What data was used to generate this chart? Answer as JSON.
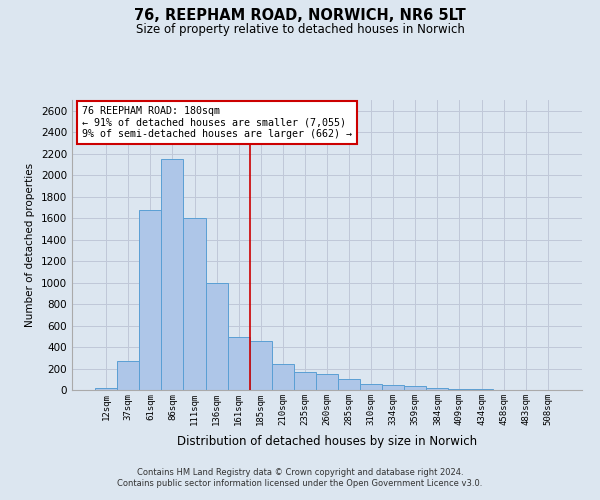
{
  "title_line1": "76, REEPHAM ROAD, NORWICH, NR6 5LT",
  "title_line2": "Size of property relative to detached houses in Norwich",
  "xlabel": "Distribution of detached houses by size in Norwich",
  "ylabel": "Number of detached properties",
  "categories": [
    "12sqm",
    "37sqm",
    "61sqm",
    "86sqm",
    "111sqm",
    "136sqm",
    "161sqm",
    "185sqm",
    "210sqm",
    "235sqm",
    "260sqm",
    "285sqm",
    "310sqm",
    "334sqm",
    "359sqm",
    "384sqm",
    "409sqm",
    "434sqm",
    "458sqm",
    "483sqm",
    "508sqm"
  ],
  "values": [
    20,
    270,
    1680,
    2150,
    1600,
    1000,
    490,
    460,
    240,
    170,
    150,
    100,
    60,
    50,
    40,
    15,
    8,
    5,
    3,
    2,
    2
  ],
  "bar_color": "#aec6e8",
  "bar_edge_color": "#5a9fd4",
  "vline_color": "#cc0000",
  "annotation_text": "76 REEPHAM ROAD: 180sqm\n← 91% of detached houses are smaller (7,055)\n9% of semi-detached houses are larger (662) →",
  "annotation_box_color": "#ffffff",
  "annotation_box_edge": "#cc0000",
  "ylim": [
    0,
    2700
  ],
  "yticks": [
    0,
    200,
    400,
    600,
    800,
    1000,
    1200,
    1400,
    1600,
    1800,
    2000,
    2200,
    2400,
    2600
  ],
  "grid_color": "#c0c8d8",
  "background_color": "#dce6f0",
  "footer_line1": "Contains HM Land Registry data © Crown copyright and database right 2024.",
  "footer_line2": "Contains public sector information licensed under the Open Government Licence v3.0."
}
